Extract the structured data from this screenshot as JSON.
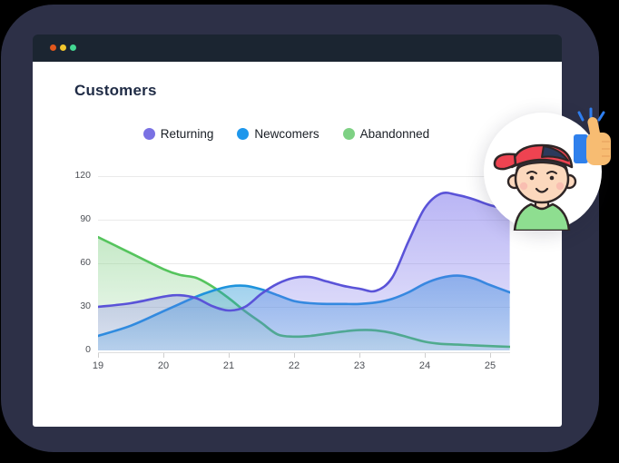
{
  "window": {
    "chrome_color": "#1b2531",
    "traffic_lights": [
      {
        "name": "close",
        "color": "#e2571c"
      },
      {
        "name": "minimize",
        "color": "#f3c72e"
      },
      {
        "name": "zoom",
        "color": "#43d792"
      }
    ]
  },
  "chart": {
    "title": "Customers"
  },
  "chart_data": {
    "type": "area",
    "title": "Customers",
    "xlabel": "",
    "ylabel": "",
    "grid": "horizontal",
    "legend_position": "top",
    "xlim": [
      19,
      25.3
    ],
    "ylim": [
      0,
      130
    ],
    "x_ticks": [
      19,
      20,
      21,
      22,
      23,
      24,
      25
    ],
    "y_ticks": [
      0,
      30,
      60,
      90,
      120
    ],
    "x": [
      19,
      19.5,
      20,
      20.25,
      20.5,
      20.75,
      21,
      21.25,
      21.5,
      21.75,
      22,
      22.25,
      22.5,
      22.75,
      23,
      23.25,
      23.5,
      23.75,
      24,
      24.25,
      24.5,
      24.75,
      25,
      25.3
    ],
    "series": [
      {
        "name": "Returning",
        "color": "#5a53d8",
        "dot_color": "#7a71e3",
        "fill_top": "rgba(116,108,234,0.50)",
        "fill_bottom": "rgba(116,108,234,0.16)",
        "values": [
          30,
          32.5,
          37,
          38,
          36,
          30.5,
          27.5,
          30,
          39,
          46,
          50,
          50.5,
          47.5,
          44.5,
          42.5,
          41,
          50,
          75,
          98,
          108,
          107,
          104,
          100,
          97
        ]
      },
      {
        "name": "Newcomers",
        "color": "#1e93dc",
        "dot_color": "#1e97ec",
        "fill_top": "rgba(35,148,214,0.46)",
        "fill_bottom": "rgba(35,148,214,0.22)",
        "values": [
          10,
          17,
          27,
          32,
          37,
          41,
          44,
          44.5,
          42,
          38,
          34,
          32.5,
          32,
          32,
          32,
          33,
          35.5,
          40,
          46,
          50,
          51.5,
          49.5,
          45,
          40
        ]
      },
      {
        "name": "Abandonned",
        "color": "#55c45d",
        "dot_color": "#7ed184",
        "fill_top": "rgba(128,206,132,0.45)",
        "fill_bottom": "rgba(128,206,132,0.10)",
        "values": [
          78,
          67,
          56,
          52,
          50,
          44,
          36,
          27,
          19,
          11,
          9.5,
          10,
          11.5,
          13,
          14,
          13.8,
          12,
          9,
          6,
          4.5,
          4,
          3.5,
          3,
          2.5
        ]
      }
    ]
  },
  "avatar": {
    "description": "boy-with-red-backwards-cap",
    "colors": {
      "skin": "#fcd8bd",
      "outline": "#2f2626",
      "cap": "#ee4351",
      "cap_panel": "#2c3a5c",
      "hair": "#2b3142",
      "shirt": "#8ede90",
      "cheek": "#f8b3ad"
    }
  },
  "thumbs_up": {
    "colors": {
      "hand": "#f7bc72",
      "sleeve": "#2f80ec",
      "sparkle": "#2e7ef0",
      "crease": "#eba964"
    }
  }
}
